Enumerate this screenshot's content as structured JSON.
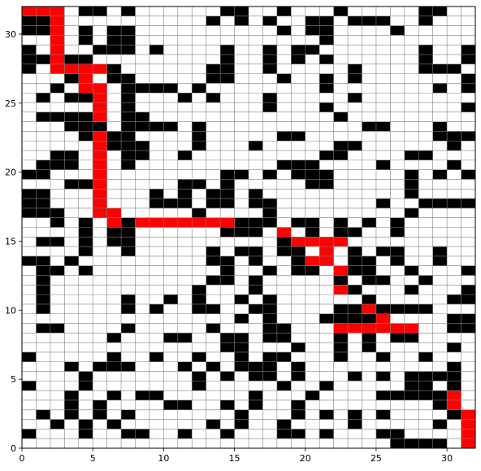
{
  "chart_data": {
    "type": "heatmap",
    "title": "",
    "xlabel": "",
    "ylabel": "",
    "xlim": [
      0,
      32
    ],
    "ylim": [
      0,
      32
    ],
    "x_ticks": [
      0,
      5,
      10,
      15,
      20,
      25,
      30
    ],
    "y_ticks": [
      0,
      5,
      10,
      15,
      20,
      25,
      30
    ],
    "grid": true,
    "colors": {
      "free": "#ffffff",
      "obstacle": "#000000",
      "path": "#ff0000",
      "gridline": "#808080"
    },
    "row_order": "top_to_bottom",
    "legend": {
      ".": "free",
      "#": "obstacle",
      "*": "path"
    },
    "rows": [
      "***.##.#......##..#...#.....##..",
      "##*..........#.#.#..##.###..#...",
      "##*.#.##..........#.##....#.....",
      "..*.#.##.............#..........",
      "#.*..###.#....#..#.##.......#..#",
      "##*##.........#..#.#.#......#..#",
      "#.****#......##..#.....#....###.",
      "...#*.##.....##...#..#.#.......#",
      "..#.**.####.#........#.......#.#",
      ".#.##*.#...#.#...#.....#........",
      ".....*.#.........#...#.........#",
      ".####*.##.............#.........",
      "...###.####.#...........##...#..",
      "....#*##....#.....##.........###",
      ".....*###...#...#.....##......#.",
      "..##.*.##..#.........##....##...",
      ".###.*.#..........###....#....#.",
      "##...*........##.#.###.....#.#.#",
      "...##*.....##.#.....##.....#....",
      "##...*...#.#.##.#..........#....",
      "##...*...###.##.##.......#..####",
      "###..**.....#....#.........#....",
      "..#.#.*#*******###.##.#.#.#.....",
      "....#.##......###.*.#.##..#.....",
      ".##.#.##..........#****.........",
      "....#..#.....#.##.##.*.#.##..#..",
      "##.#.........##.#..#**.##.#..#..",
      ".##.#.........#..#.##.*##..#...#",
      ".#...........##.#.....#.##..#...",
      ".#..........#...#.....*#...#...#",
      ".#.....#..#.#..#.#......#.....##",
      ".#.....#.#..##..##....##*####...",
      "...............#.#...####*....##",
      ".##....#.....#...##...******..##",
      "......#...##..##.##...#.#.##....",
      "..............##...#..#.#.....#.",
      "#.....#..#..#..#.##...#..#..#...",
      "...#.###...#.#.###.#..........#.",
      "....#.......#.#.##.#...#.#.####.",
      "#...#.......#.....#..#.....##.#.",
      "...#..#.##......#...#....#####*.",
      "...#.#....##..#.#..#.........#*.",
      ".#.#.#.#.......#...#.#.#.#....#*",
      "..#.#.#......#.#..#....#.....#.*",
      "#...#..##..#..#...##.#...##....*",
      "..........................####.*"
    ]
  }
}
